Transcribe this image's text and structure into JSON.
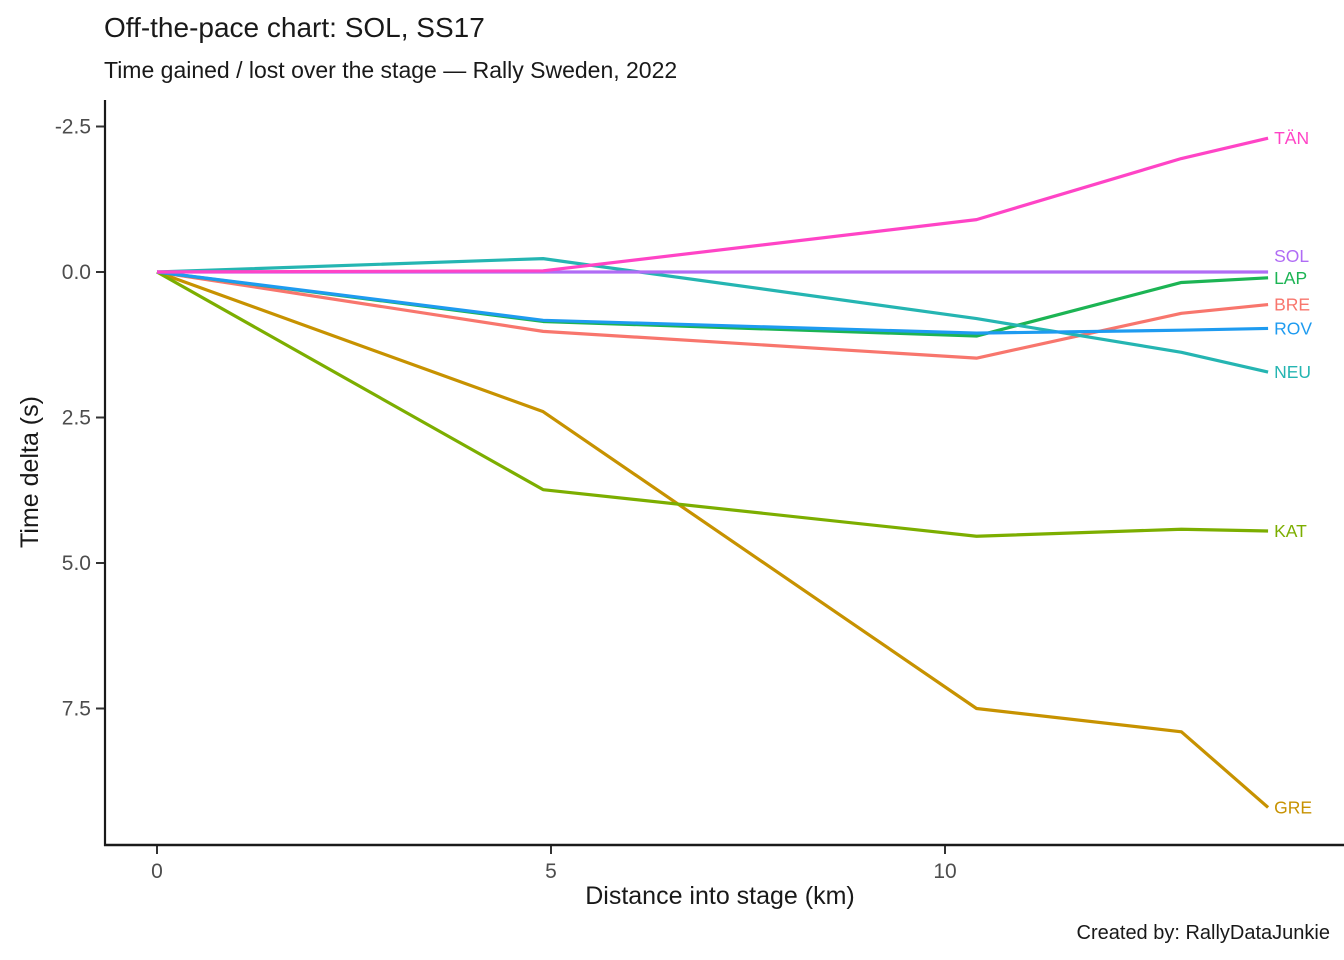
{
  "header": {
    "title": "Off-the-pace chart: SOL, SS17",
    "subtitle": "Time gained / lost over the stage — Rally Sweden, 2022"
  },
  "caption": "Created by: RallyDataJunkie",
  "chart_data": {
    "type": "line",
    "title": "Off-the-pace chart: SOL, SS17",
    "subtitle": "Time gained / lost over the stage — Rally Sweden, 2022",
    "xlabel": "Distance into stage (km)",
    "ylabel": "Time delta (s)",
    "x_ticks": [
      0,
      5,
      10
    ],
    "x_tick_labels": [
      "0",
      "5",
      "10"
    ],
    "y_ticks": [
      -2.5,
      0.0,
      2.5,
      5.0,
      7.5
    ],
    "y_tick_labels": [
      "-2.5",
      "0.0",
      "2.5",
      "5.0",
      "7.5"
    ],
    "y_axis_inverted": true,
    "xlim": [
      -0.66,
      15.06
    ],
    "ylim": [
      -2.95,
      9.85
    ],
    "grid": false,
    "legend": "direct-labels-at-line-ends",
    "x": [
      0,
      4.9,
      10.4,
      13.0,
      14.1
    ],
    "series": [
      {
        "name": "BRE",
        "color": "#F8766D",
        "values": [
          0,
          1.02,
          1.48,
          0.71,
          0.56
        ]
      },
      {
        "name": "GRE",
        "color": "#C79200",
        "values": [
          0,
          2.4,
          7.5,
          7.9,
          9.2
        ]
      },
      {
        "name": "KAT",
        "color": "#7CAE00",
        "values": [
          0,
          3.74,
          4.54,
          4.42,
          4.45
        ]
      },
      {
        "name": "LAP",
        "color": "#1CB454",
        "values": [
          0,
          0.85,
          1.1,
          0.18,
          0.1
        ]
      },
      {
        "name": "NEU",
        "color": "#25B5B2",
        "values": [
          0,
          -0.23,
          0.8,
          1.38,
          1.72
        ]
      },
      {
        "name": "ROV",
        "color": "#1E9BF0",
        "values": [
          0,
          0.83,
          1.05,
          1.0,
          0.97
        ]
      },
      {
        "name": "SOL",
        "color": "#B06CF5",
        "values": [
          0,
          0.0,
          0.0,
          0.0,
          0.0
        ]
      },
      {
        "name": "TÄN",
        "color": "#FF44C6",
        "values": [
          0,
          -0.02,
          -0.9,
          -1.95,
          -2.3
        ]
      }
    ]
  }
}
